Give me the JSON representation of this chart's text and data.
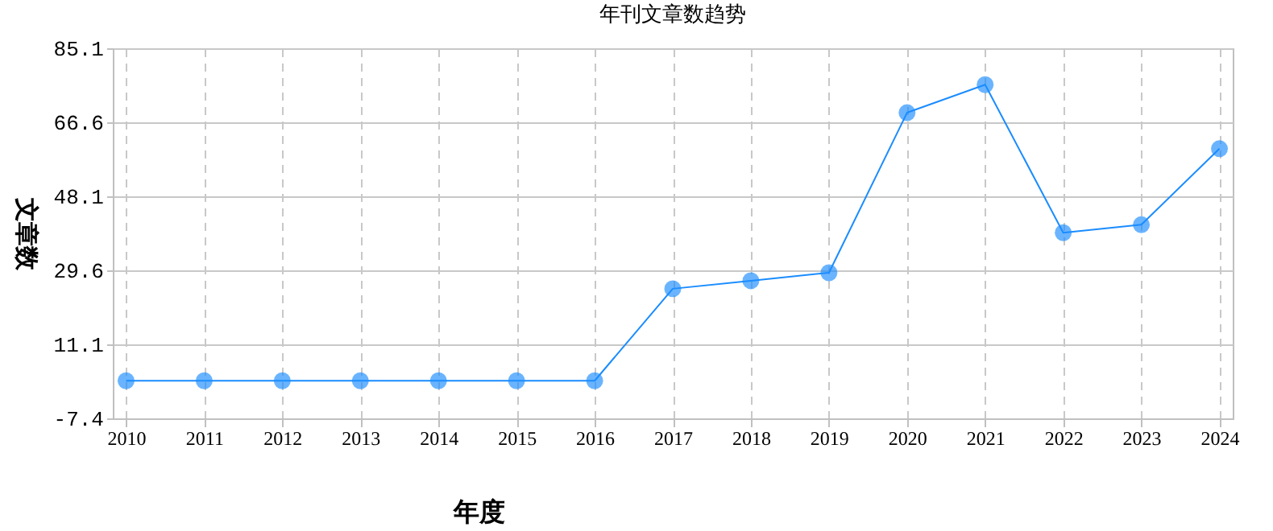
{
  "chart_data": {
    "type": "line",
    "title": "年刊文章数趋势",
    "xlabel": "年度",
    "ylabel": "文章数",
    "categories": [
      "2010",
      "2011",
      "2012",
      "2013",
      "2014",
      "2015",
      "2016",
      "2017",
      "2018",
      "2019",
      "2020",
      "2021",
      "2022",
      "2023",
      "2024"
    ],
    "series": [
      {
        "color": "#1a8cff",
        "values": [
          2,
          2,
          2,
          2,
          2,
          2,
          2,
          25,
          27,
          29,
          69,
          76,
          39,
          41,
          60
        ]
      }
    ],
    "ylim": [
      -7.4,
      85.1
    ],
    "yticks": [
      -7.4,
      11.1,
      29.6,
      48.1,
      66.6,
      85.1
    ],
    "grid": true,
    "marker": "circle",
    "line_style": "solid"
  }
}
